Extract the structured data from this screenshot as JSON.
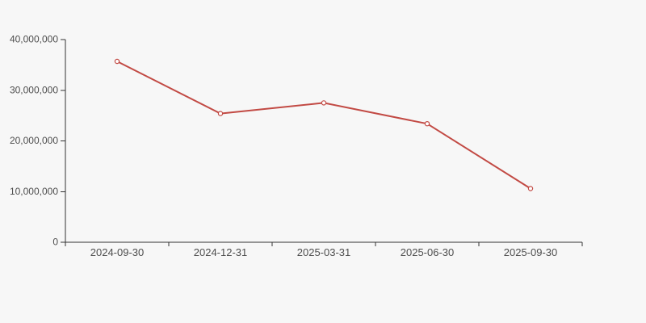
{
  "page": {
    "background": "#f7f7f7"
  },
  "chart_data": {
    "type": "line",
    "title": "",
    "xlabel": "",
    "ylabel": "",
    "categories": [
      "2024-09-30",
      "2024-12-31",
      "2025-03-31",
      "2025-06-30",
      "2025-09-30"
    ],
    "values": [
      35700000,
      25400000,
      27500000,
      23400000,
      10600000
    ],
    "ylim": [
      0,
      40000000
    ],
    "y_ticks": [
      0,
      10000000,
      20000000,
      30000000,
      40000000
    ],
    "y_tick_labels": [
      "0",
      "10,000,000",
      "20,000,000",
      "30,000,000",
      "40,000,000"
    ],
    "grid": "off",
    "legend": "none",
    "line_color": "#c24a44",
    "marker": "open-circle",
    "marker_fill": "#ffffff",
    "axis_color": "#333333",
    "text_color": "#4d4d4d",
    "background": "#f7f7f7"
  }
}
